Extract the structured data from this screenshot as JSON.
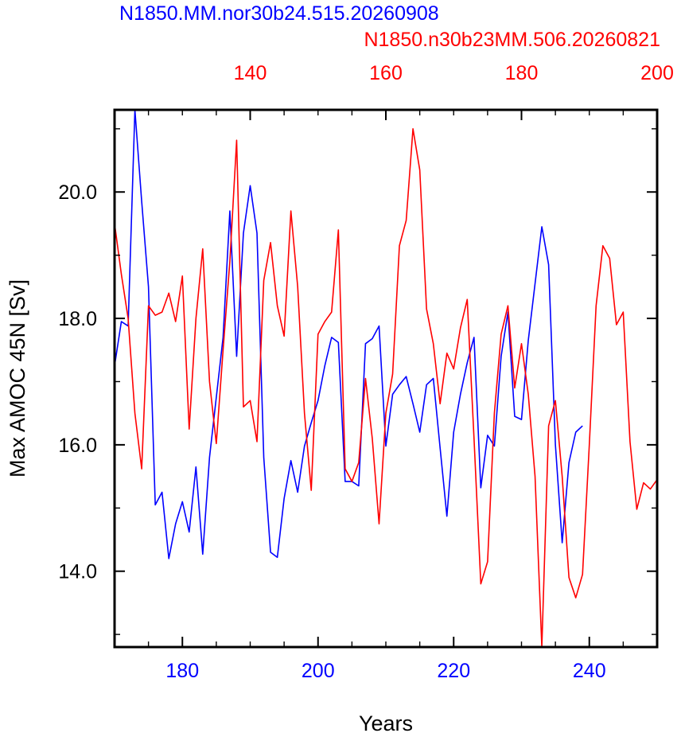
{
  "chart_data": {
    "type": "line",
    "ylabel": "Max AMOC 45N [Sv]",
    "xlabel": "Years",
    "ylim": [
      12.8,
      21.3
    ],
    "yticks": [
      14.0,
      16.0,
      18.0,
      20.0
    ],
    "ytick_labels": [
      "14.0",
      "16.0",
      "18.0",
      "20.0"
    ],
    "grid": false,
    "series": [
      {
        "name": "N1850.MM.nor30b24.515.20260908",
        "color": "#0000ff",
        "axis": "bottom",
        "xlim": [
          170,
          250
        ],
        "xticks": [
          180,
          200,
          220,
          240
        ],
        "xtick_labels": [
          "180",
          "200",
          "220",
          "240"
        ],
        "x": [
          170,
          171,
          172,
          173,
          174,
          175,
          176,
          177,
          178,
          179,
          180,
          181,
          182,
          183,
          184,
          185,
          186,
          187,
          188,
          189,
          190,
          191,
          192,
          193,
          194,
          195,
          196,
          197,
          198,
          199,
          200,
          201,
          202,
          203,
          204,
          205,
          206,
          207,
          208,
          209,
          210,
          211,
          212,
          213,
          214,
          215,
          216,
          217,
          218,
          219,
          220,
          221,
          222,
          223,
          224,
          225,
          226,
          227,
          228,
          229,
          230,
          231,
          232,
          233,
          234,
          235,
          236,
          237,
          238,
          239,
          240
        ],
        "values": [
          17.25,
          17.95,
          17.88,
          21.3,
          19.85,
          18.5,
          15.05,
          15.25,
          14.2,
          14.75,
          15.1,
          14.62,
          15.65,
          14.27,
          15.8,
          16.75,
          17.7,
          19.7,
          17.4,
          19.35,
          20.1,
          19.35,
          15.8,
          14.3,
          14.22,
          15.15,
          15.75,
          15.25,
          15.98,
          16.35,
          16.7,
          17.25,
          17.7,
          17.62,
          15.42,
          15.42,
          15.35,
          17.6,
          17.68,
          17.88,
          15.98,
          16.8,
          16.95,
          17.08,
          16.65,
          16.2,
          16.95,
          17.05,
          15.95,
          14.87,
          16.2,
          16.8,
          17.3,
          17.7,
          15.32,
          16.15,
          15.98,
          17.4,
          18.1,
          16.45,
          16.4,
          17.65,
          18.55,
          19.45,
          18.85,
          16.0,
          14.45,
          15.72,
          16.2,
          16.3,
          null
        ]
      },
      {
        "name": "N1850.n30b23MM.506.20260821",
        "color": "#ff0000",
        "axis": "top",
        "xlim": [
          120,
          200
        ],
        "xticks": [
          140,
          160,
          180,
          200
        ],
        "xtick_labels": [
          "140",
          "160",
          "180",
          "200"
        ],
        "x": [
          120,
          121,
          122,
          123,
          124,
          125,
          126,
          127,
          128,
          129,
          130,
          131,
          132,
          133,
          134,
          135,
          136,
          137,
          138,
          139,
          140,
          141,
          142,
          143,
          144,
          145,
          146,
          147,
          148,
          149,
          150,
          151,
          152,
          153,
          154,
          155,
          156,
          157,
          158,
          159,
          160,
          161,
          162,
          163,
          164,
          165,
          166,
          167,
          168,
          169,
          170,
          171,
          172,
          173,
          174,
          175,
          176,
          177,
          178,
          179,
          180,
          181,
          182,
          183,
          184,
          185,
          186,
          187,
          188,
          189,
          190,
          191,
          192,
          193,
          194,
          195,
          196,
          197,
          198,
          199,
          200
        ],
        "values": [
          19.5,
          18.7,
          18.0,
          16.5,
          15.62,
          18.2,
          18.05,
          18.1,
          18.4,
          17.95,
          18.67,
          16.25,
          18.0,
          19.1,
          17.0,
          16.02,
          17.5,
          18.9,
          20.82,
          16.6,
          16.7,
          16.05,
          18.6,
          19.2,
          18.2,
          17.72,
          19.7,
          18.5,
          16.5,
          15.28,
          17.75,
          17.95,
          18.1,
          19.4,
          15.62,
          15.42,
          15.72,
          17.05,
          16.1,
          14.75,
          16.5,
          17.12,
          19.15,
          19.55,
          21.0,
          20.35,
          18.15,
          17.6,
          16.65,
          17.45,
          17.2,
          17.85,
          18.3,
          16.1,
          13.8,
          14.15,
          16.5,
          17.75,
          18.2,
          16.9,
          17.6,
          16.8,
          15.5,
          12.8,
          16.3,
          16.7,
          15.5,
          13.9,
          13.58,
          13.95,
          16.0,
          18.2,
          19.15,
          18.95,
          17.9,
          18.1,
          16.05,
          14.98,
          15.4,
          15.3,
          15.45
        ]
      }
    ]
  }
}
